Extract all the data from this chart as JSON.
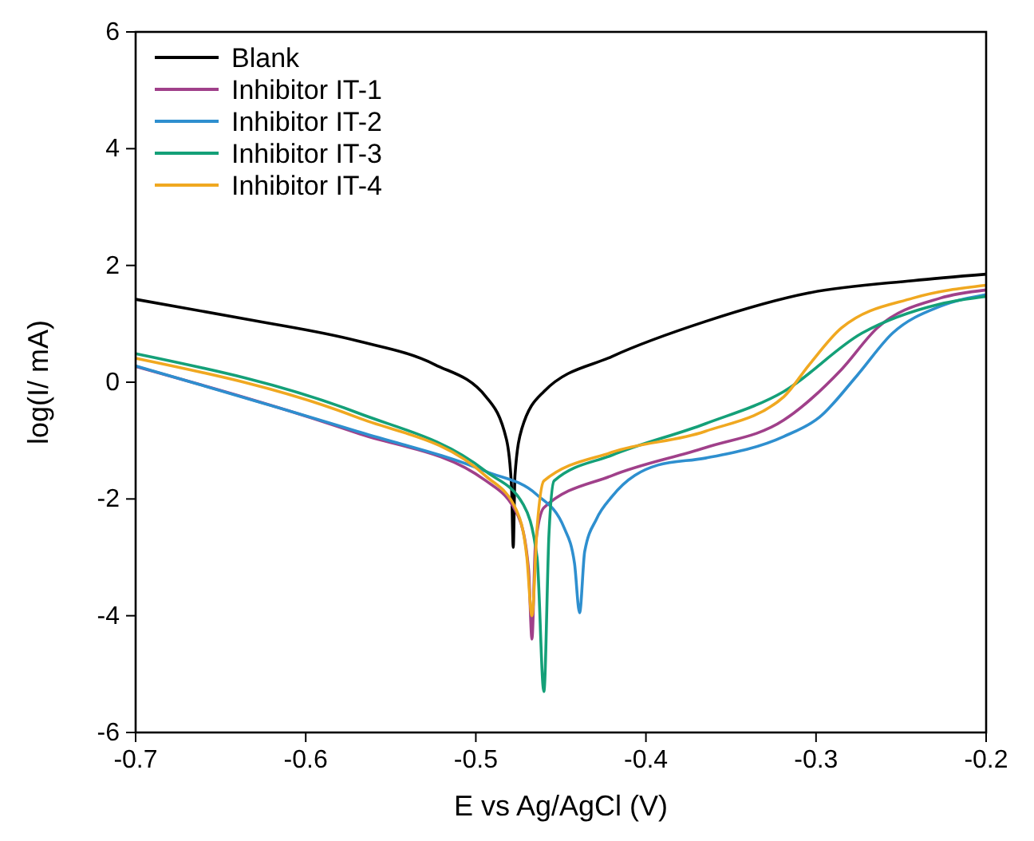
{
  "chart_data": {
    "type": "line",
    "xlabel": "E vs Ag/AgCl (V)",
    "ylabel": "log(I/ mA)",
    "xlim": [
      -0.7,
      -0.2
    ],
    "ylim": [
      -6,
      6
    ],
    "xticks": [
      -0.7,
      -0.6,
      -0.5,
      -0.4,
      -0.3,
      -0.2
    ],
    "yticks": [
      -6,
      -4,
      -2,
      0,
      2,
      4,
      6
    ],
    "legend": "top left",
    "grid": false,
    "series": [
      {
        "name": "Blank",
        "color": "#000000",
        "x": [
          -0.7,
          -0.631,
          -0.57,
          -0.524,
          -0.494,
          -0.482,
          -0.479,
          -0.478,
          -0.477,
          -0.473,
          -0.46,
          -0.42,
          -0.365,
          -0.304,
          -0.243,
          -0.2
        ],
        "values": [
          1.42,
          1.06,
          0.71,
          0.3,
          -0.25,
          -0.98,
          -1.8,
          -2.83,
          -1.6,
          -0.8,
          -0.16,
          0.44,
          1.04,
          1.53,
          1.74,
          1.85
        ]
      },
      {
        "name": "Inhibitor IT-1",
        "color": "#a0408a",
        "x": [
          -0.7,
          -0.57,
          -0.494,
          -0.475,
          -0.469,
          -0.467,
          -0.465,
          -0.46,
          -0.42,
          -0.365,
          -0.319,
          -0.285,
          -0.264,
          -0.227,
          -0.2
        ],
        "values": [
          0.27,
          -0.87,
          -1.69,
          -2.3,
          -3.2,
          -4.4,
          -2.8,
          -2.15,
          -1.6,
          -1.12,
          -0.65,
          0.22,
          0.93,
          1.44,
          1.58
        ]
      },
      {
        "name": "Inhibitor IT-2",
        "color": "#2e8fcf",
        "x": [
          -0.7,
          -0.57,
          -0.494,
          -0.464,
          -0.448,
          -0.442,
          -0.439,
          -0.436,
          -0.429,
          -0.42,
          -0.393,
          -0.365,
          -0.319,
          -0.298,
          -0.276,
          -0.255,
          -0.227,
          -0.2
        ],
        "values": [
          0.28,
          -0.84,
          -1.53,
          -1.93,
          -2.5,
          -3.1,
          -3.95,
          -2.9,
          -2.34,
          -1.96,
          -1.42,
          -1.3,
          -0.93,
          -0.6,
          0.11,
          0.84,
          1.3,
          1.5
        ]
      },
      {
        "name": "Inhibitor IT-3",
        "color": "#14a078",
        "x": [
          -0.7,
          -0.57,
          -0.494,
          -0.472,
          -0.464,
          -0.46,
          -0.457,
          -0.454,
          -0.42,
          -0.365,
          -0.319,
          -0.273,
          -0.227,
          -0.2
        ],
        "values": [
          0.49,
          -0.52,
          -1.53,
          -2.1,
          -3.0,
          -5.3,
          -2.6,
          -1.69,
          -1.25,
          -0.71,
          -0.16,
          0.84,
          1.34,
          1.47
        ]
      },
      {
        "name": "Inhibitor IT-4",
        "color": "#f0a820",
        "x": [
          -0.7,
          -0.57,
          -0.494,
          -0.476,
          -0.47,
          -0.467,
          -0.464,
          -0.46,
          -0.42,
          -0.365,
          -0.319,
          -0.304,
          -0.285,
          -0.243,
          -0.2
        ],
        "values": [
          0.41,
          -0.6,
          -1.61,
          -2.2,
          -3.0,
          -4.0,
          -2.5,
          -1.69,
          -1.2,
          -0.84,
          -0.25,
          0.3,
          0.93,
          1.44,
          1.66
        ]
      }
    ]
  }
}
